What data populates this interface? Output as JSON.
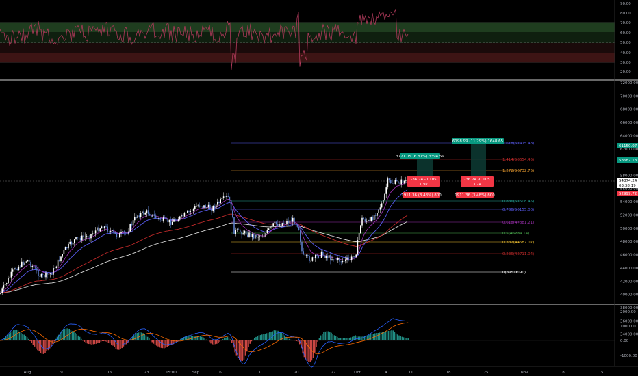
{
  "colors": {
    "background": "#000000",
    "grid": "#1a1a1a",
    "candle_up": "#ffffff",
    "candle_down": "#5b7cc7",
    "rsi_line": "#b03a5b",
    "rsi_upper_band": "#1f3d1f",
    "rsi_lower_band": "#3d1414",
    "ema_fast": "#9b2fae",
    "ema_mid": "#5a5cf2",
    "ema_slow": "#c42b2b",
    "sma_long": "#d9d9d9",
    "macd_line": "#2962ff",
    "signal_line": "#ff6d00",
    "hist_up": "#26a69a",
    "hist_down": "#ef5350",
    "tag_green": "#089981",
    "tag_red": "#f23645"
  },
  "rsi_axis": {
    "labels": [
      "90.00",
      "80.00",
      "70.00",
      "60.00",
      "50.00",
      "40.00",
      "30.00",
      "20.00"
    ]
  },
  "price_axis": {
    "labels": [
      "72000.00",
      "70000.00",
      "68000.00",
      "66000.00",
      "64000.00",
      "62000.00",
      "60000.00",
      "58000.00",
      "56000.00",
      "54000.00",
      "52000.00",
      "50000.00",
      "48000.00",
      "46000.00",
      "44000.00",
      "42000.00",
      "40000.00",
      "38000.00",
      "36000.00",
      "34000.00"
    ],
    "tag_61150": "61150.07",
    "tag_58682": "58682.13",
    "tag_last": "54874.24",
    "tag_countdown": "03:38:19",
    "tag_52999": "52999.72"
  },
  "macd_axis": {
    "labels": [
      "2000.00",
      "1000.00",
      "0.00",
      "-1000.00"
    ]
  },
  "time_axis": {
    "labels": [
      "Aug",
      "9",
      "16",
      "23",
      "15:00",
      "Sep",
      "6",
      "13",
      "20",
      "27",
      "Oct",
      "4",
      "11",
      "18",
      "25",
      "Nov",
      "8",
      "15"
    ]
  },
  "fib_levels": [
    {
      "label": "1.618(61415.48)",
      "color": "#5a5cf2"
    },
    {
      "label": "1.414(58654.45)",
      "color": "#c42b2b"
    },
    {
      "label": "1.272(56732.75)",
      "color": "#f0a030"
    },
    {
      "label": "0.886(51508.45)",
      "color": "#26a69a"
    },
    {
      "label": "0.786(50155.00)",
      "color": "#5a5cf2"
    },
    {
      "label": "0.618(47881.21)",
      "color": "#9b2fae"
    },
    {
      "label": "0.5(46284.14)",
      "color": "#4caf50"
    },
    {
      "label": "0.382(44687.07)",
      "color": "#f0c030"
    },
    {
      "label": "0.236(42711.04)",
      "color": "#c42b2b"
    },
    {
      "label": "0(39516.90)",
      "color": "#ffffff"
    }
  ],
  "positions": {
    "long1_target": "3771.05 (6.87%) 3394.59",
    "long2_target": "6198.99 (11.29%) 1648.65",
    "pnl1_line1": "-36.74 -0.105",
    "pnl1_line2": "1.97",
    "pnl2_line1": "-36.74 -0.105",
    "pnl2_line2": "3.24",
    "stop1": "1911.36 (3.48%) 800",
    "stop2": "1911.36 (3.48%) 800"
  }
}
